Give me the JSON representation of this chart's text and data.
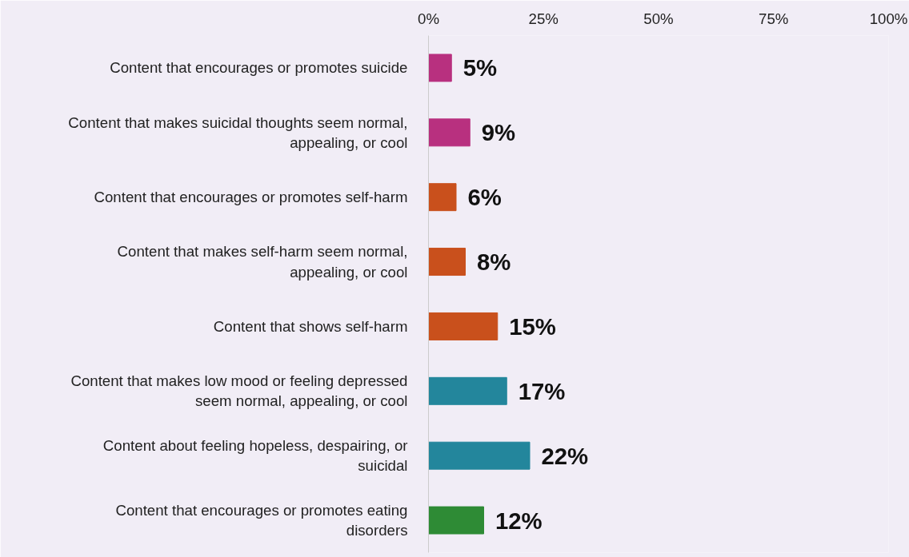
{
  "chart_data": {
    "type": "bar",
    "orientation": "horizontal",
    "categories": [
      "Content that encourages or promotes suicide",
      "Content that makes suicidal thoughts seem normal, appealing, or cool",
      "Content that encourages or promotes self-harm",
      "Content that makes self-harm seem normal, appealing, or cool",
      "Content that shows self-harm",
      "Content that makes low mood or feeling depressed seem normal, appealing, or cool",
      "Content about feeling hopeless, despairing, or suicidal",
      "Content that encourages or promotes eating disorders"
    ],
    "values": [
      5,
      9,
      6,
      8,
      15,
      17,
      22,
      12
    ],
    "colors": [
      "#b8307f",
      "#b8307f",
      "#c9501c",
      "#c9501c",
      "#c9501c",
      "#23869c",
      "#23869c",
      "#2e8b35"
    ],
    "value_labels": [
      "5%",
      "9%",
      "6%",
      "8%",
      "15%",
      "17%",
      "22%",
      "12%"
    ],
    "xlim": [
      0,
      100
    ],
    "xticks": [
      {
        "value": 0,
        "label": "0%"
      },
      {
        "value": 25,
        "label": "25%"
      },
      {
        "value": 50,
        "label": "50%"
      },
      {
        "value": 75,
        "label": "75%"
      },
      {
        "value": 100,
        "label": "100%"
      }
    ],
    "grid": false
  }
}
